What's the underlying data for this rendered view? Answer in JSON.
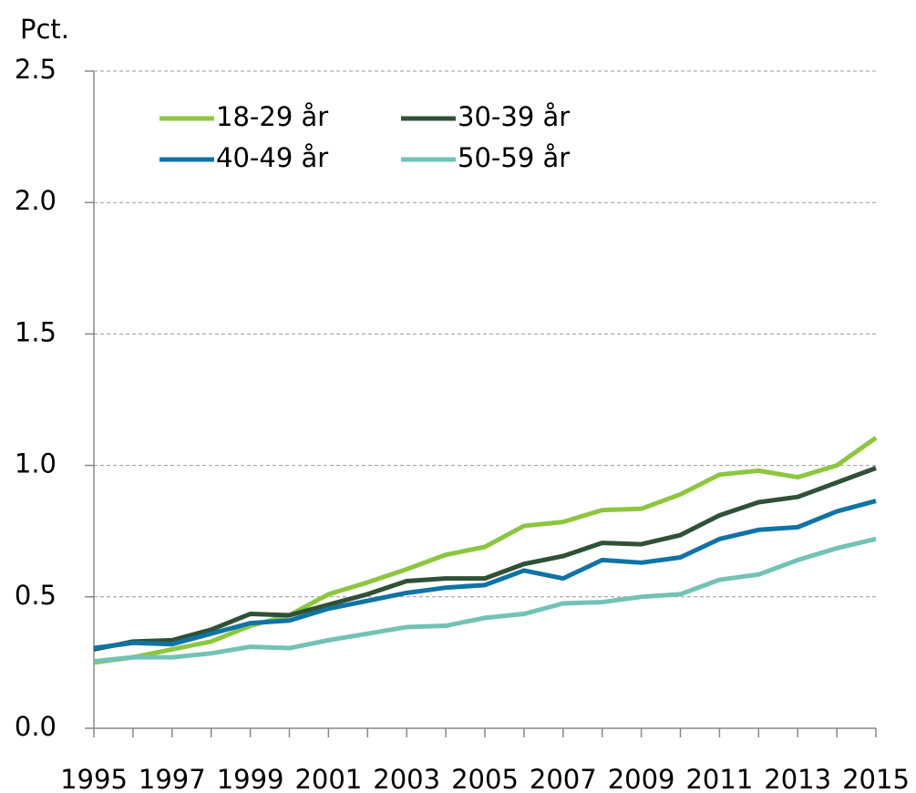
{
  "chart_data": {
    "type": "line",
    "y_label": "Pct.",
    "x": [
      1995,
      1996,
      1997,
      1998,
      1999,
      2000,
      2001,
      2002,
      2003,
      2004,
      2005,
      2006,
      2007,
      2008,
      2009,
      2010,
      2011,
      2012,
      2013,
      2014,
      2015
    ],
    "xlim": [
      1995,
      2015
    ],
    "xticks": [
      1995,
      1997,
      1999,
      2001,
      2003,
      2005,
      2007,
      2009,
      2011,
      2013,
      2015
    ],
    "ylim": [
      0,
      2.5
    ],
    "yticks": [
      {
        "value": 0,
        "label": "0.0"
      },
      0.5,
      {
        "value": 1,
        "label": "1.0"
      },
      1.5,
      {
        "value": 2,
        "label": "2.0"
      },
      2.5
    ],
    "grid": true,
    "series": [
      {
        "name": "18-29 år",
        "color": "#8dc63f",
        "values": [
          0.25,
          0.27,
          0.3,
          0.33,
          0.39,
          0.43,
          0.51,
          0.555,
          0.605,
          0.66,
          0.69,
          0.77,
          0.785,
          0.83,
          0.835,
          0.89,
          0.965,
          0.98,
          0.955,
          1.0,
          1.105
        ]
      },
      {
        "name": "30-39 år",
        "color": "#2f5136",
        "values": [
          0.3,
          0.33,
          0.335,
          0.375,
          0.435,
          0.43,
          0.47,
          0.51,
          0.56,
          0.57,
          0.57,
          0.625,
          0.655,
          0.705,
          0.7,
          0.735,
          0.81,
          0.86,
          0.88,
          0.935,
          0.99
        ]
      },
      {
        "name": "40-49 år",
        "color": "#0f73a6",
        "values": [
          0.305,
          0.325,
          0.32,
          0.36,
          0.4,
          0.41,
          0.455,
          0.485,
          0.515,
          0.535,
          0.545,
          0.6,
          0.57,
          0.64,
          0.63,
          0.65,
          0.72,
          0.755,
          0.765,
          0.825,
          0.865
        ]
      },
      {
        "name": "50-59 år",
        "color": "#72c2b5",
        "values": [
          0.255,
          0.27,
          0.27,
          0.285,
          0.31,
          0.305,
          0.335,
          0.36,
          0.385,
          0.39,
          0.42,
          0.435,
          0.475,
          0.48,
          0.5,
          0.51,
          0.565,
          0.585,
          0.64,
          0.685,
          0.72
        ]
      }
    ]
  }
}
